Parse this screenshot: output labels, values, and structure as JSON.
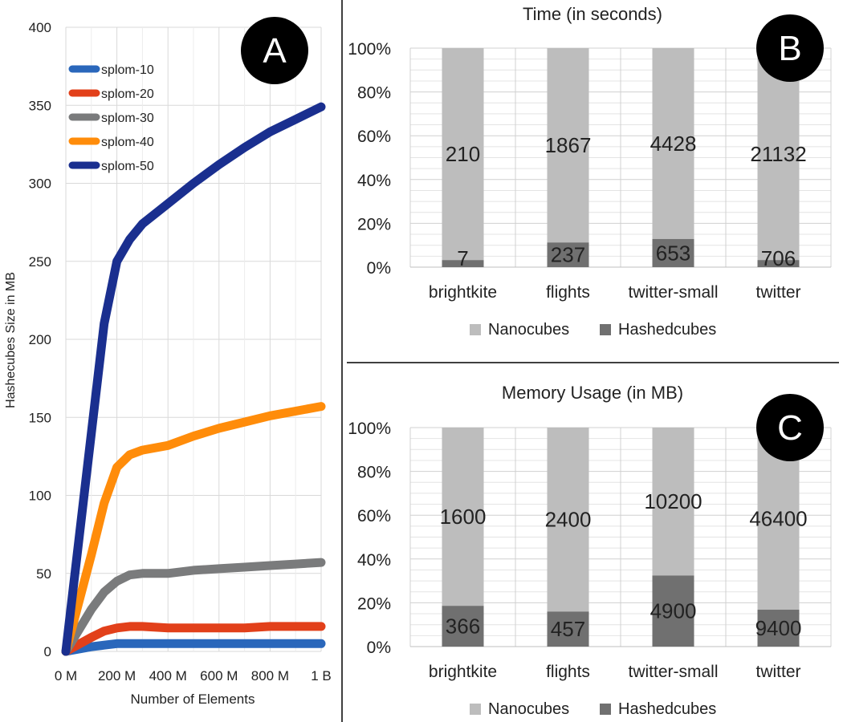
{
  "colors": {
    "nanocubes": "#bdbdbd",
    "hashedcubes": "#707070",
    "grid": "#d9d9d9",
    "badge_bg": "#000000",
    "badge_fg": "#ffffff"
  },
  "chart_data": [
    {
      "type": "line",
      "badge": "A",
      "title": "",
      "xlabel": "Number of Elements",
      "ylabel": "Hashecubes Size in MB",
      "xlim": [
        0,
        1000
      ],
      "ylim": [
        0,
        400
      ],
      "x_ticks": [
        {
          "value": 0,
          "label": "0 M"
        },
        {
          "value": 200,
          "label": "200 M"
        },
        {
          "value": 400,
          "label": "400 M"
        },
        {
          "value": 600,
          "label": "600 M"
        },
        {
          "value": 800,
          "label": "800 M"
        },
        {
          "value": 1000,
          "label": "1 B"
        }
      ],
      "y_ticks": [
        "0",
        "50",
        "100",
        "150",
        "200",
        "250",
        "300",
        "350",
        "400"
      ],
      "grid": true,
      "legend_position": "top-left",
      "series": [
        {
          "name": "splom-10",
          "color": "#2a67bb",
          "x": [
            0,
            100,
            150,
            200,
            250,
            300,
            400,
            500,
            600,
            700,
            800,
            900,
            1000
          ],
          "values": [
            0,
            3,
            4,
            5,
            5,
            5,
            5,
            5,
            5,
            5,
            5,
            5,
            5
          ]
        },
        {
          "name": "splom-20",
          "color": "#e2401a",
          "x": [
            0,
            100,
            150,
            200,
            250,
            300,
            400,
            500,
            600,
            700,
            800,
            900,
            1000
          ],
          "values": [
            0,
            9,
            13,
            15,
            16,
            16,
            15,
            15,
            15,
            15,
            16,
            16,
            16
          ]
        },
        {
          "name": "splom-30",
          "color": "#7a7b7c",
          "x": [
            0,
            100,
            150,
            200,
            250,
            300,
            400,
            500,
            600,
            700,
            800,
            900,
            1000
          ],
          "values": [
            0,
            27,
            38,
            45,
            49,
            50,
            50,
            52,
            53,
            54,
            55,
            56,
            57
          ]
        },
        {
          "name": "splom-40",
          "color": "#ff8c0a",
          "x": [
            0,
            100,
            150,
            200,
            250,
            300,
            400,
            500,
            600,
            700,
            800,
            900,
            1000
          ],
          "values": [
            0,
            62,
            95,
            118,
            126,
            129,
            132,
            138,
            143,
            147,
            151,
            154,
            157
          ]
        },
        {
          "name": "splom-50",
          "color": "#1a2f8f",
          "x": [
            0,
            100,
            150,
            200,
            250,
            300,
            400,
            500,
            600,
            700,
            800,
            900,
            1000
          ],
          "values": [
            0,
            140,
            210,
            250,
            264,
            274,
            287,
            300,
            312,
            323,
            333,
            341,
            349
          ]
        }
      ]
    },
    {
      "type": "bar",
      "stacked_percent": true,
      "badge": "B",
      "title": "Time (in seconds)",
      "categories": [
        "brightkite",
        "flights",
        "twitter-small",
        "twitter"
      ],
      "y_ticks": [
        "0%",
        "20%",
        "40%",
        "60%",
        "80%",
        "100%"
      ],
      "legend_position": "bottom",
      "series": [
        {
          "name": "Nanocubes",
          "values": [
            210,
            1867,
            4428,
            21132
          ]
        },
        {
          "name": "Hashedcubes",
          "values": [
            7,
            237,
            653,
            706
          ]
        }
      ]
    },
    {
      "type": "bar",
      "stacked_percent": true,
      "badge": "C",
      "title": "Memory Usage (in MB)",
      "categories": [
        "brightkite",
        "flights",
        "twitter-small",
        "twitter"
      ],
      "y_ticks": [
        "0%",
        "20%",
        "40%",
        "60%",
        "80%",
        "100%"
      ],
      "legend_position": "bottom",
      "series": [
        {
          "name": "Nanocubes",
          "values": [
            1600,
            2400,
            10200,
            46400
          ]
        },
        {
          "name": "Hashedcubes",
          "values": [
            366,
            457,
            4900,
            9400
          ]
        }
      ]
    }
  ]
}
